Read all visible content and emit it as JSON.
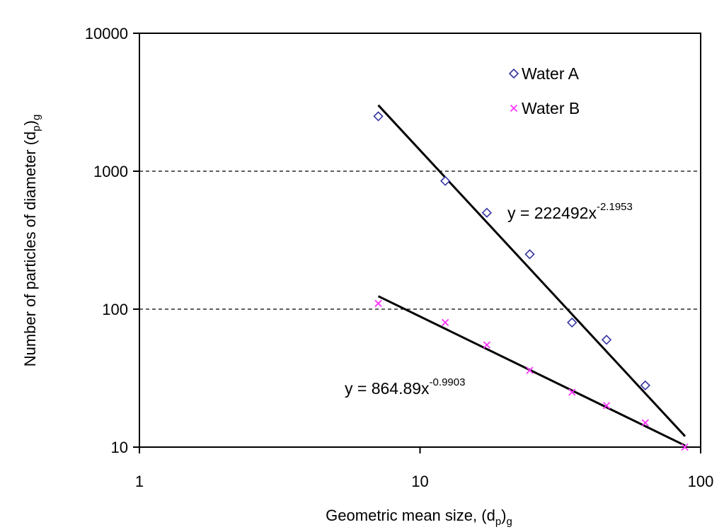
{
  "chart_data": {
    "type": "scatter",
    "xscale": "log",
    "yscale": "log",
    "xlim": [
      1,
      100
    ],
    "ylim": [
      10,
      10000
    ],
    "xticks": [
      "1",
      "10",
      "100"
    ],
    "yticks": [
      "10",
      "100",
      "1000",
      "10000"
    ],
    "xlabel": {
      "main": "Geometric mean size, (d",
      "sub": "p",
      "end": ")",
      "sub2": "g"
    },
    "ylabel": {
      "main": "Number of particles of diameter (d",
      "sub": "p",
      "end": ")",
      "sub2": "g"
    },
    "grid": "horizontal dashed at 100 and 1000",
    "legend_position": "top-right",
    "series": [
      {
        "name": "Water A",
        "marker": "diamond",
        "color": "#3333a0",
        "x": [
          7.1,
          12.3,
          17.3,
          24.6,
          34.8,
          46.2,
          63.5
        ],
        "y": [
          2500,
          850,
          500,
          250,
          80,
          60,
          28
        ],
        "trendline": {
          "a": 222492,
          "b": -2.1953,
          "x_range": [
            7.1,
            88
          ],
          "label_base": "y = 222492x",
          "label_exp": "-2.1953"
        }
      },
      {
        "name": "Water B",
        "marker": "x",
        "color": "#ff33ff",
        "x": [
          7.1,
          12.3,
          17.3,
          24.6,
          34.8,
          46.2,
          63.5,
          87.8
        ],
        "y": [
          110,
          80,
          55,
          36,
          25,
          20,
          15,
          10
        ],
        "trendline": {
          "a": 864.89,
          "b": -0.9903,
          "x_range": [
            7.1,
            88
          ],
          "label_base": "y = 864.89x",
          "label_exp": "-0.9903"
        }
      }
    ]
  }
}
